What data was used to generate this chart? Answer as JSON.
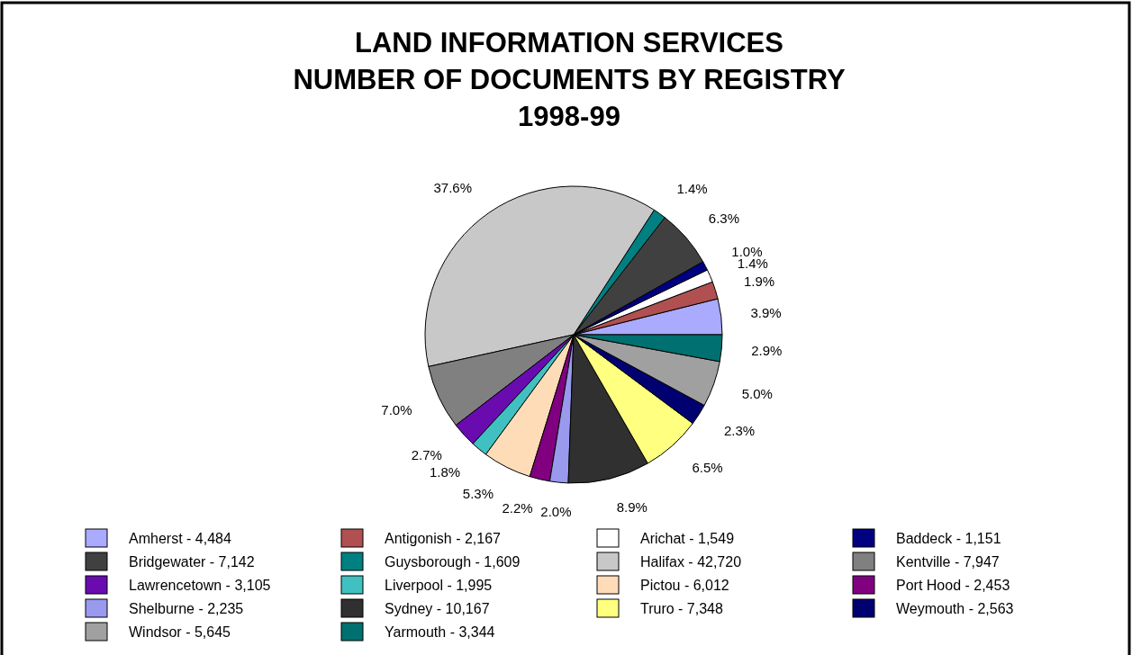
{
  "chart_data": {
    "type": "pie",
    "title": "LAND INFORMATION SERVICES\nNUMBER OF DOCUMENTS BY REGISTRY\n1998-99",
    "categories": [
      "Amherst - 4,484",
      "Antigonish - 2,167",
      "Arichat - 1,549",
      "Baddeck - 1,151",
      "Bridgewater - 7,142",
      "Guysborough - 1,609",
      "Halifax - 42,720",
      "Kentville - 7,947",
      "Lawrencetown - 3,105",
      "Liverpool - 1,995",
      "Pictou - 6,012",
      "Port Hood - 2,453",
      "Shelburne - 2,235",
      "Sydney - 10,167",
      "Truro - 7,348",
      "Weymouth - 2,563",
      "Windsor - 5,645",
      "Yarmouth - 3,344"
    ],
    "values": [
      3.9,
      1.9,
      1.4,
      1.0,
      6.3,
      1.4,
      37.6,
      7.0,
      2.7,
      1.8,
      5.3,
      2.2,
      2.0,
      8.9,
      6.5,
      2.3,
      5.0,
      2.9
    ],
    "value_labels": [
      "3.9%",
      "1.9%",
      "1.4%",
      "1.0%",
      "6.3%",
      "1.4%",
      "37.6%",
      "7.0%",
      "2.7%",
      "1.8%",
      "5.3%",
      "2.2%",
      "2.0%",
      "8.9%",
      "6.5%",
      "2.3%",
      "5.0%",
      "2.9%"
    ],
    "colors": [
      "#aaaaff",
      "#b05050",
      "#ffffff",
      "#000080",
      "#404040",
      "#008080",
      "#c8c8c8",
      "#808080",
      "#6a0bb0",
      "#40c0c0",
      "#ffdcb8",
      "#800080",
      "#9999ee",
      "#303030",
      "#ffff80",
      "#000070",
      "#a0a0a0",
      "#007070"
    ],
    "legend": "bottom"
  }
}
